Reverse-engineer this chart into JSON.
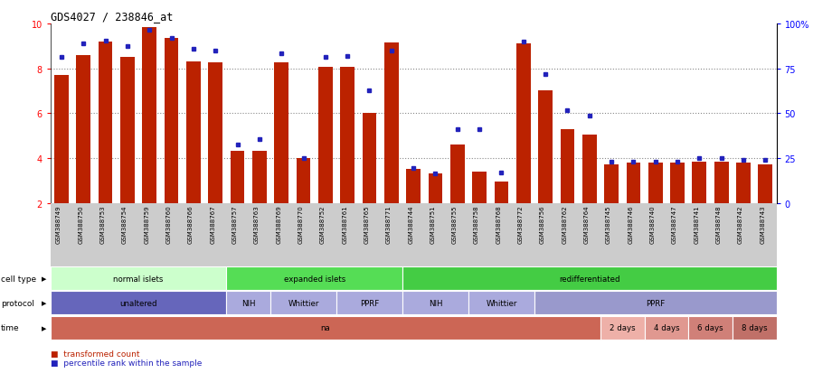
{
  "title": "GDS4027 / 238846_at",
  "samples": [
    "GSM388749",
    "GSM388750",
    "GSM388753",
    "GSM388754",
    "GSM388759",
    "GSM388760",
    "GSM388766",
    "GSM388767",
    "GSM388757",
    "GSM388763",
    "GSM388769",
    "GSM388770",
    "GSM388752",
    "GSM388761",
    "GSM388765",
    "GSM388771",
    "GSM388744",
    "GSM388751",
    "GSM388755",
    "GSM388758",
    "GSM388768",
    "GSM388772",
    "GSM388756",
    "GSM388762",
    "GSM388764",
    "GSM388745",
    "GSM388746",
    "GSM388740",
    "GSM388747",
    "GSM388741",
    "GSM388748",
    "GSM388742",
    "GSM388743"
  ],
  "bar_values": [
    7.7,
    8.6,
    9.2,
    8.5,
    9.85,
    9.35,
    8.3,
    8.25,
    4.3,
    4.3,
    8.25,
    4.0,
    8.05,
    8.05,
    6.0,
    9.15,
    3.5,
    3.3,
    4.6,
    3.4,
    2.95,
    9.1,
    7.0,
    5.3,
    5.05,
    3.7,
    3.8,
    3.8,
    3.8,
    3.85,
    3.85,
    3.8,
    3.7
  ],
  "dot_values": [
    8.5,
    9.1,
    9.25,
    9.0,
    9.7,
    9.35,
    8.85,
    8.8,
    4.6,
    4.85,
    8.65,
    4.0,
    8.5,
    8.55,
    7.0,
    8.8,
    3.55,
    3.3,
    5.3,
    5.3,
    3.35,
    9.2,
    7.75,
    6.15,
    5.9,
    3.85,
    3.85,
    3.85,
    3.85,
    4.0,
    4.0,
    3.9,
    3.9
  ],
  "ymin": 2,
  "ymax": 10,
  "yticks": [
    2,
    4,
    6,
    8,
    10
  ],
  "bar_color": "#bb2200",
  "dot_color": "#2222bb",
  "bg_color": "#ffffff",
  "grid_color": "#888888",
  "tick_bg_color": "#cccccc",
  "cell_type_groups": [
    {
      "label": "normal islets",
      "start": 0,
      "end": 7,
      "color": "#ccffcc"
    },
    {
      "label": "expanded islets",
      "start": 8,
      "end": 15,
      "color": "#55dd55"
    },
    {
      "label": "redifferentiated",
      "start": 16,
      "end": 32,
      "color": "#44cc44"
    }
  ],
  "protocol_groups": [
    {
      "label": "unaltered",
      "start": 0,
      "end": 7,
      "color": "#6666bb"
    },
    {
      "label": "NIH",
      "start": 8,
      "end": 9,
      "color": "#aaaadd"
    },
    {
      "label": "Whittier",
      "start": 10,
      "end": 12,
      "color": "#aaaadd"
    },
    {
      "label": "PPRF",
      "start": 13,
      "end": 15,
      "color": "#aaaadd"
    },
    {
      "label": "NIH",
      "start": 16,
      "end": 18,
      "color": "#aaaadd"
    },
    {
      "label": "Whittier",
      "start": 19,
      "end": 21,
      "color": "#aaaadd"
    },
    {
      "label": "PPRF",
      "start": 22,
      "end": 32,
      "color": "#9999cc"
    }
  ],
  "time_groups": [
    {
      "label": "na",
      "start": 0,
      "end": 24,
      "color": "#cc6655"
    },
    {
      "label": "2 days",
      "start": 25,
      "end": 26,
      "color": "#eeb0a8"
    },
    {
      "label": "4 days",
      "start": 27,
      "end": 28,
      "color": "#e09890"
    },
    {
      "label": "6 days",
      "start": 29,
      "end": 30,
      "color": "#d08078"
    },
    {
      "label": "8 days",
      "start": 31,
      "end": 32,
      "color": "#c07068"
    }
  ],
  "row_labels": [
    "cell type",
    "protocol",
    "time"
  ],
  "fig_width": 8.99,
  "fig_height": 4.14,
  "dpi": 100
}
